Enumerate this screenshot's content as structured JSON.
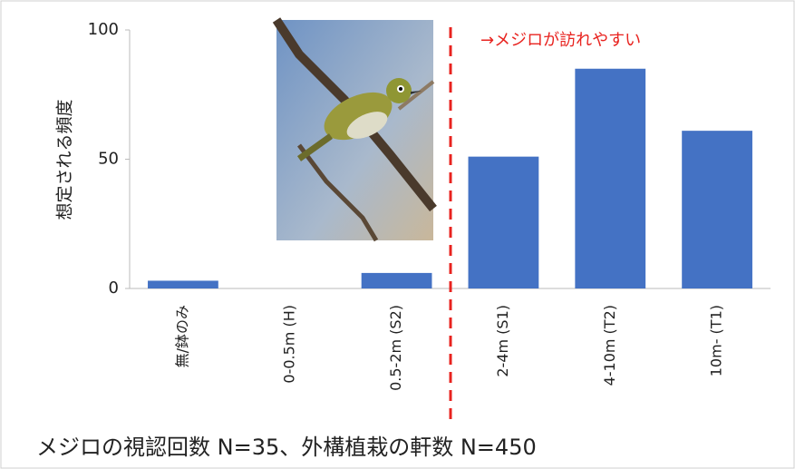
{
  "chart_data": {
    "type": "bar",
    "y_label": "想定される頻度",
    "annotation": "→メジロが訪れやすい",
    "footnote": "メジロの視認回数 N=35、外構植栽の軒数 N=450",
    "categories": [
      "無/鉢のみ",
      "0-0.5m (H)",
      "0.5-2m (S2)",
      "2-4m (S1)",
      "4-10m (T2)",
      "10m- (T1)"
    ],
    "values": [
      3,
      0,
      6,
      51,
      85,
      61
    ],
    "color": "#4472c4",
    "ylim": [
      0,
      100
    ],
    "yticks": [
      0,
      50,
      100
    ]
  }
}
